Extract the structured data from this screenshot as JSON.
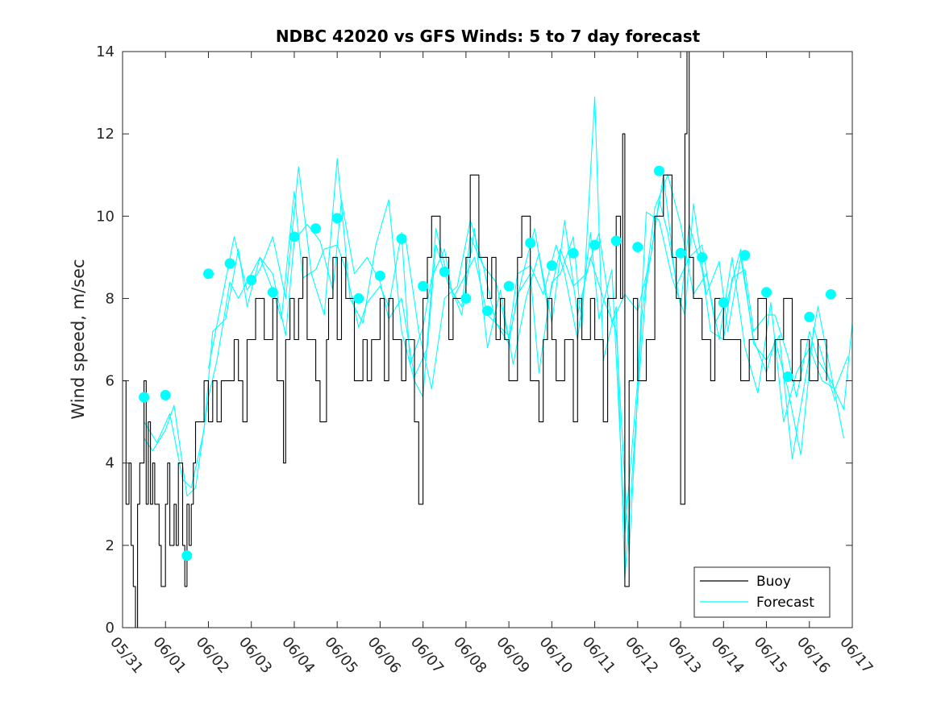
{
  "chart_data": {
    "type": "line",
    "title": "NDBC 42020 vs GFS Winds: 5 to 7 day forecast",
    "xlabel": "",
    "ylabel": "Wind speed, m/sec",
    "xlim": [
      0,
      17
    ],
    "ylim": [
      0,
      14
    ],
    "y_ticks": [
      "0",
      "2",
      "4",
      "6",
      "8",
      "10",
      "12",
      "14"
    ],
    "x_ticks": [
      "05/31",
      "06/01",
      "06/02",
      "06/03",
      "06/04",
      "06/05",
      "06/06",
      "06/07",
      "06/08",
      "06/09",
      "06/10",
      "06/11",
      "06/12",
      "06/13",
      "06/14",
      "06/15",
      "06/16",
      "06/17"
    ],
    "x_units": "days since 05/31 00:00",
    "grid": false,
    "legend_position": "bottom-right",
    "colors": {
      "buoy": "#000000",
      "forecast": "#00ffff"
    },
    "series": [
      {
        "name": "Buoy",
        "type": "line",
        "x": [
          0.0,
          0.08,
          0.15,
          0.2,
          0.25,
          0.3,
          0.35,
          0.4,
          0.5,
          0.55,
          0.6,
          0.65,
          0.7,
          0.75,
          0.85,
          0.9,
          1.0,
          1.05,
          1.1,
          1.2,
          1.25,
          1.3,
          1.4,
          1.45,
          1.5,
          1.55,
          1.6,
          1.65,
          1.7,
          1.8,
          1.9,
          2.0,
          2.1,
          2.2,
          2.3,
          2.5,
          2.6,
          2.7,
          2.8,
          2.9,
          3.0,
          3.1,
          3.3,
          3.5,
          3.6,
          3.75,
          3.8,
          3.9,
          4.0,
          4.1,
          4.2,
          4.3,
          4.5,
          4.6,
          4.75,
          4.8,
          4.9,
          5.0,
          5.1,
          5.2,
          5.4,
          5.6,
          5.7,
          5.8,
          6.0,
          6.1,
          6.2,
          6.3,
          6.5,
          6.6,
          6.8,
          6.9,
          7.0,
          7.1,
          7.2,
          7.4,
          7.6,
          7.7,
          7.8,
          8.0,
          8.1,
          8.3,
          8.5,
          8.6,
          8.7,
          8.8,
          8.9,
          9.0,
          9.2,
          9.3,
          9.5,
          9.7,
          9.8,
          9.9,
          10.0,
          10.1,
          10.3,
          10.5,
          10.6,
          10.7,
          10.9,
          11.0,
          11.2,
          11.3,
          11.5,
          11.6,
          11.65,
          11.7,
          11.8,
          11.9,
          12.0,
          12.2,
          12.4,
          12.6,
          12.8,
          12.9,
          13.0,
          13.1,
          13.15,
          13.2,
          13.3,
          13.5,
          13.7,
          13.8,
          14.0,
          14.2,
          14.4,
          14.6,
          14.8,
          15.0,
          15.2,
          15.4,
          15.6,
          15.8,
          16.0,
          16.2,
          16.4
        ],
        "y": [
          6,
          3,
          4,
          2,
          1,
          0,
          3,
          4,
          6,
          3,
          5,
          3,
          4,
          3,
          2,
          1,
          3,
          4,
          2,
          3,
          2,
          4,
          2,
          1,
          3,
          2,
          3,
          4,
          5,
          5,
          6,
          5,
          6,
          5,
          6,
          6,
          7,
          6,
          5,
          7,
          7,
          8,
          7,
          8,
          6,
          4,
          7,
          8,
          7,
          8,
          9,
          7,
          6,
          5,
          7,
          8,
          9,
          7,
          9,
          8,
          6,
          7,
          6,
          7,
          8,
          6,
          8,
          7,
          6,
          7,
          5,
          3,
          8,
          9,
          10,
          9,
          7,
          8,
          8,
          9,
          11,
          9,
          8,
          9,
          7,
          8,
          7,
          6,
          9,
          10,
          6,
          5,
          7,
          8,
          7,
          6,
          7,
          5,
          8,
          7,
          8,
          7,
          5,
          8,
          10,
          8,
          12,
          1,
          6,
          8,
          6,
          7,
          10,
          11,
          9,
          8,
          3,
          12,
          14,
          9,
          8,
          7,
          6,
          8,
          7,
          7,
          6,
          7,
          8,
          6,
          7,
          8,
          6,
          7,
          6,
          7,
          6
        ]
      },
      {
        "name": "Forecast",
        "type": "line",
        "x": [
          0.5,
          0.7,
          1.0,
          1.2,
          1.5,
          1.7,
          2.0,
          2.2,
          2.5,
          2.7,
          3.0,
          3.2,
          3.5,
          3.7,
          4.0,
          4.2,
          4.5,
          4.7,
          5.0,
          5.2,
          5.5,
          5.7,
          6.0,
          6.2,
          6.5,
          6.7,
          7.0,
          7.2,
          7.5,
          7.7,
          8.0,
          8.2,
          8.5,
          8.7,
          9.0,
          9.2,
          9.5,
          9.7,
          10.0,
          10.2,
          10.5,
          10.7,
          11.0,
          11.2,
          11.5,
          11.7,
          12.0,
          12.2,
          12.5,
          12.7,
          13.0,
          13.2,
          13.5,
          13.7,
          14.0,
          14.2,
          14.5,
          14.7,
          15.0,
          15.2,
          15.5,
          15.7,
          16.0,
          16.2,
          16.5,
          16.8,
          17.0
        ],
        "y": [
          4.6,
          4.3,
          4.8,
          5.4,
          3.2,
          3.4,
          5.6,
          6.5,
          8.4,
          8.0,
          8.6,
          9.0,
          8.2,
          7.5,
          10.6,
          8.5,
          8.7,
          9.2,
          9.3,
          8.7,
          7.3,
          7.9,
          8.3,
          7.8,
          9.6,
          6.4,
          7.3,
          8.5,
          9.2,
          8.0,
          8.6,
          9.0,
          7.6,
          7.4,
          6.9,
          8.1,
          8.6,
          6.2,
          8.4,
          8.6,
          9.5,
          7.3,
          12.9,
          6.5,
          7.8,
          1.2,
          5.6,
          8.3,
          10.4,
          9.6,
          7.8,
          9.8,
          8.7,
          7.2,
          7.0,
          8.5,
          8.7,
          7.2,
          7.6,
          7.6,
          6.6,
          5.6,
          7.2,
          6.5,
          6.0,
          5.3,
          7.4
        ]
      },
      {
        "name": "Forecast",
        "type": "line",
        "x": [
          0.5,
          0.8,
          1.1,
          1.4,
          1.6,
          1.9,
          2.1,
          2.4,
          2.7,
          2.9,
          3.2,
          3.5,
          3.8,
          4.0,
          4.3,
          4.6,
          4.9,
          5.1,
          5.4,
          5.7,
          6.0,
          6.2,
          6.5,
          6.8,
          7.1,
          7.3,
          7.6,
          7.9,
          8.1,
          8.4,
          8.7,
          9.0,
          9.2,
          9.5,
          9.8,
          10.1,
          10.3,
          10.6,
          10.9,
          11.1,
          11.4,
          11.7,
          12.0,
          12.2,
          12.5,
          12.8,
          13.1,
          13.3,
          13.6,
          13.9,
          14.1,
          14.4,
          14.7,
          15.0,
          15.2,
          15.5,
          15.8,
          16.1,
          16.3,
          16.6
        ],
        "y": [
          5.0,
          4.5,
          5.2,
          3.6,
          3.4,
          4.8,
          7.2,
          7.5,
          9.2,
          7.8,
          9.0,
          8.6,
          7.1,
          9.4,
          9.8,
          9.4,
          8.2,
          10.4,
          8.6,
          9.0,
          8.4,
          7.5,
          8.0,
          6.1,
          6.8,
          9.3,
          8.3,
          7.8,
          9.5,
          8.8,
          7.4,
          7.1,
          8.6,
          8.8,
          8.1,
          9.3,
          8.6,
          7.0,
          9.6,
          7.5,
          8.7,
          2.3,
          6.0,
          10.1,
          9.9,
          8.5,
          7.6,
          10.3,
          8.1,
          8.9,
          7.2,
          9.0,
          7.0,
          6.2,
          7.0,
          5.8,
          4.2,
          7.3,
          6.6,
          5.5
        ]
      },
      {
        "name": "Forecast",
        "type": "line",
        "x": [
          2.0,
          2.3,
          2.6,
          2.9,
          3.2,
          3.5,
          3.8,
          4.1,
          4.4,
          4.7,
          5.0,
          5.3,
          5.6,
          5.9,
          6.2,
          6.5,
          6.8,
          7.0,
          7.3,
          7.6,
          7.9,
          8.2,
          8.5,
          8.8,
          9.1,
          9.4,
          9.7,
          10.0,
          10.3,
          10.6,
          10.9,
          11.2,
          11.5,
          11.8,
          12.1,
          12.4,
          12.7,
          13.0,
          13.3,
          13.6,
          13.9,
          14.2,
          14.5,
          14.8,
          15.1,
          15.4,
          15.7,
          16.0,
          16.3,
          16.6,
          16.9
        ],
        "y": [
          6.3,
          7.9,
          9.5,
          8.2,
          8.7,
          9.5,
          8.0,
          11.2,
          8.6,
          7.6,
          11.4,
          8.0,
          7.4,
          9.3,
          10.4,
          7.2,
          6.0,
          5.6,
          9.7,
          8.4,
          7.6,
          9.7,
          6.8,
          8.2,
          6.4,
          8.0,
          9.1,
          7.4,
          9.9,
          7.6,
          9.0,
          8.0,
          7.2,
          1.8,
          7.6,
          10.2,
          11.0,
          9.8,
          8.1,
          8.6,
          7.0,
          9.0,
          6.8,
          5.7,
          7.9,
          5.0,
          6.2,
          6.8,
          6.0,
          5.8,
          6.6
        ]
      },
      {
        "name": "Forecast",
        "type": "line",
        "x": [
          6.6,
          6.9,
          7.2,
          7.5,
          7.8,
          8.1,
          8.4,
          8.7,
          9.0,
          9.3,
          9.6,
          9.9,
          10.2,
          10.5,
          10.8,
          11.1,
          11.4,
          11.7,
          12.0,
          12.3,
          12.6,
          12.9,
          13.2,
          13.5,
          13.8,
          14.1,
          14.4,
          14.7,
          15.0,
          15.3,
          15.6,
          15.9,
          16.2,
          16.5,
          16.8
        ],
        "y": [
          9.4,
          7.2,
          5.8,
          8.0,
          8.3,
          9.9,
          8.8,
          8.4,
          7.0,
          8.5,
          9.7,
          7.8,
          9.2,
          8.3,
          8.6,
          9.6,
          7.4,
          8.1,
          7.7,
          9.0,
          11.0,
          8.3,
          9.0,
          9.3,
          7.4,
          8.0,
          9.2,
          6.9,
          6.5,
          7.1,
          4.1,
          6.0,
          7.8,
          6.2,
          4.6
        ]
      }
    ],
    "markers": {
      "name": "Forecast",
      "type": "scatter",
      "x": [
        0.5,
        1.0,
        1.5,
        2.0,
        2.5,
        3.0,
        3.5,
        4.0,
        4.5,
        5.0,
        5.5,
        6.0,
        6.5,
        7.0,
        7.5,
        8.0,
        8.5,
        9.0,
        9.5,
        10.0,
        10.5,
        11.0,
        11.5,
        12.0,
        12.5,
        13.0,
        13.5,
        14.0,
        14.5,
        15.0,
        15.5,
        16.0,
        16.5
      ],
      "y": [
        5.6,
        5.65,
        1.75,
        8.6,
        8.85,
        8.45,
        8.15,
        9.5,
        9.7,
        9.95,
        8.0,
        8.55,
        9.45,
        8.3,
        8.65,
        8.0,
        7.7,
        8.3,
        9.35,
        8.8,
        9.1,
        9.3,
        9.4,
        9.25,
        11.1,
        9.1,
        9.0,
        7.9,
        9.05,
        8.15,
        6.1,
        7.55,
        8.1
      ]
    },
    "legend": [
      "Buoy",
      "Forecast"
    ]
  }
}
